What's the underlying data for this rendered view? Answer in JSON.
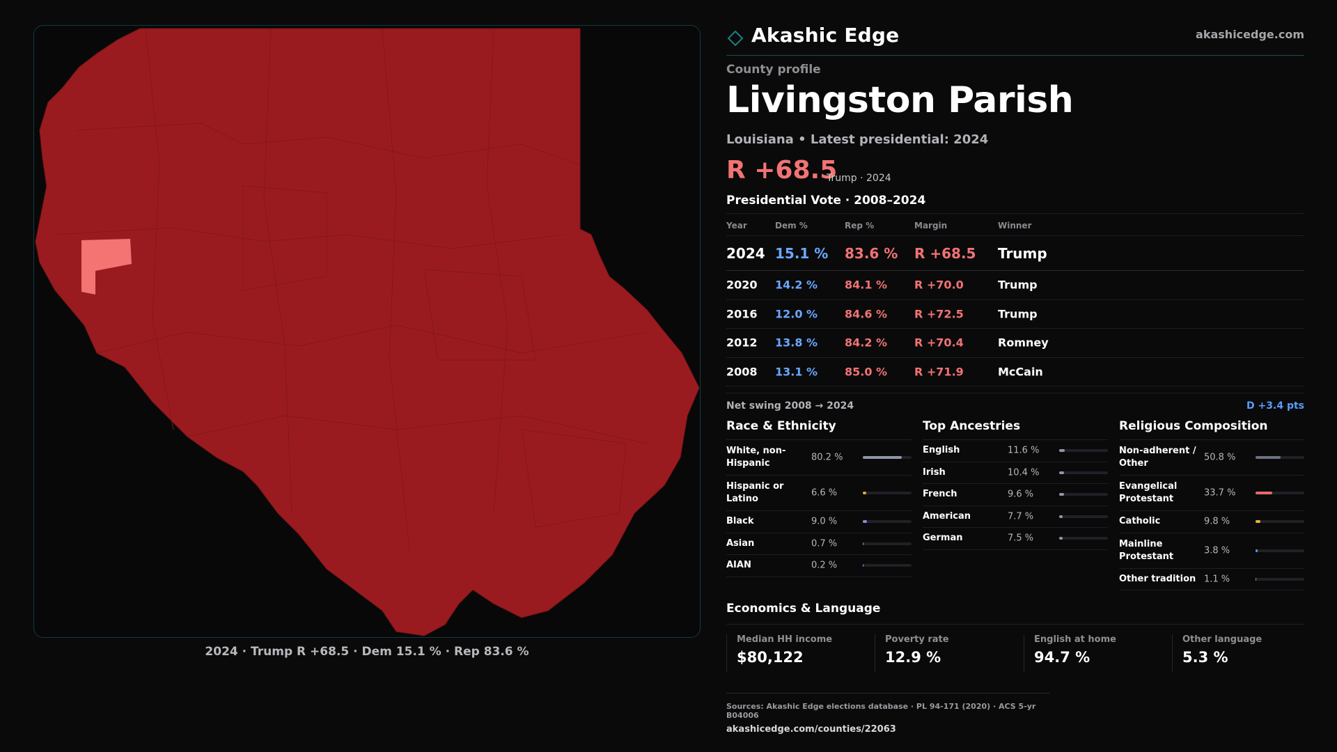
{
  "map": {
    "caption": "2024 · Trump R +68.5 · Dem 15.1 % · Rep 83.6 %",
    "fill_color": "#9a1b1f",
    "highlight_color": "#f47373"
  },
  "brand": {
    "name": "Akashic Edge",
    "url": "akashicedge.com",
    "accent": "#1e7f86"
  },
  "profile": {
    "eyebrow": "County profile",
    "title": "Livingston Parish",
    "subtitle": "Louisiana • Latest presidential: 2024",
    "margin": "R +68.5",
    "margin_note": "Trump · 2024"
  },
  "vote": {
    "title": "Presidential Vote · 2008–2024",
    "headers": {
      "year": "Year",
      "dem": "Dem %",
      "rep": "Rep %",
      "margin": "Margin",
      "winner": "Winner"
    },
    "rows": [
      {
        "year": "2024",
        "dem": "15.1 %",
        "rep": "83.6 %",
        "margin": "R +68.5",
        "winner": "Trump"
      },
      {
        "year": "2020",
        "dem": "14.2 %",
        "rep": "84.1 %",
        "margin": "R +70.0",
        "winner": "Trump"
      },
      {
        "year": "2016",
        "dem": "12.0 %",
        "rep": "84.6 %",
        "margin": "R +72.5",
        "winner": "Trump"
      },
      {
        "year": "2012",
        "dem": "13.8 %",
        "rep": "84.2 %",
        "margin": "R +70.4",
        "winner": "Romney"
      },
      {
        "year": "2008",
        "dem": "13.1 %",
        "rep": "85.0 %",
        "margin": "R +71.9",
        "winner": "McCain"
      }
    ]
  },
  "swing": {
    "label": "Net swing 2008 → 2024",
    "value": "D +3.4 pts"
  },
  "race": {
    "title": "Race & Ethnicity",
    "rows": [
      {
        "label": "White, non-Hispanic",
        "value": "80.2 %",
        "pct": 80.2,
        "color": "#8e97a8"
      },
      {
        "label": "Hispanic or Latino",
        "value": "6.6 %",
        "pct": 6.6,
        "color": "#e7a534"
      },
      {
        "label": "Black",
        "value": "9.0 %",
        "pct": 9.0,
        "color": "#8f86e0"
      },
      {
        "label": "Asian",
        "value": "0.7 %",
        "pct": 0.7,
        "color": "#5a9bff"
      },
      {
        "label": "AIAN",
        "value": "0.2 %",
        "pct": 0.2,
        "color": "#5a9bff"
      }
    ]
  },
  "ancestry": {
    "title": "Top Ancestries",
    "rows": [
      {
        "label": "English",
        "value": "11.6 %",
        "pct": 11.6,
        "color": "#8e97a8"
      },
      {
        "label": "Irish",
        "value": "10.4 %",
        "pct": 10.4,
        "color": "#8e97a8"
      },
      {
        "label": "French",
        "value": "9.6 %",
        "pct": 9.6,
        "color": "#8e97a8"
      },
      {
        "label": "American",
        "value": "7.7 %",
        "pct": 7.7,
        "color": "#8e97a8"
      },
      {
        "label": "German",
        "value": "7.5 %",
        "pct": 7.5,
        "color": "#8e97a8"
      }
    ]
  },
  "religion": {
    "title": "Religious Composition",
    "rows": [
      {
        "label": "Non-adherent / Other",
        "value": "50.8 %",
        "pct": 50.8,
        "color": "#6b7180"
      },
      {
        "label": "Evangelical Protestant",
        "value": "33.7 %",
        "pct": 33.7,
        "color": "#e86a6a"
      },
      {
        "label": "Catholic",
        "value": "9.8 %",
        "pct": 9.8,
        "color": "#e7b634"
      },
      {
        "label": "Mainline Protestant",
        "value": "3.8 %",
        "pct": 3.8,
        "color": "#5a9bff"
      },
      {
        "label": "Other tradition",
        "value": "1.1 %",
        "pct": 1.1,
        "color": "#8e97a8"
      }
    ]
  },
  "economics": {
    "title": "Economics & Language",
    "cards": [
      {
        "label": "Median HH income",
        "value": "$80,122"
      },
      {
        "label": "Poverty rate",
        "value": "12.9 %"
      },
      {
        "label": "English at home",
        "value": "94.7 %"
      },
      {
        "label": "Other language",
        "value": "5.3 %"
      }
    ]
  },
  "footer": {
    "sources": "Sources: Akashic Edge elections database · PL 94-171 (2020) · ACS 5-yr B04006",
    "url": "akashicedge.com/counties/22063"
  }
}
